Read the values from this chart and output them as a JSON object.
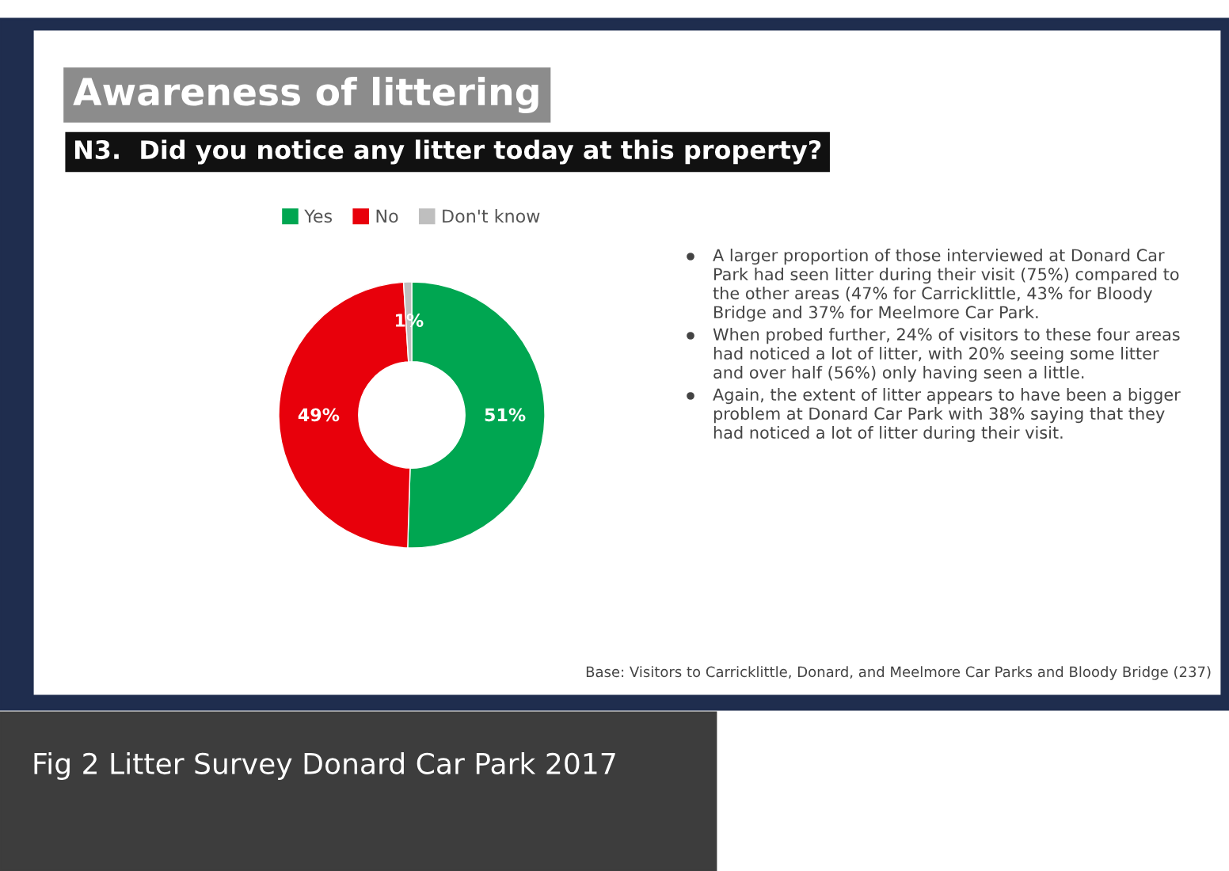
{
  "chart_data": {
    "type": "donut",
    "title": "Awareness of littering",
    "subtitle": "N3.  Did you notice any litter today at this property?",
    "categories": [
      "Yes",
      "No",
      "Don't know"
    ],
    "values": [
      51,
      49,
      1
    ],
    "colors": [
      "#00a651",
      "#e8000b",
      "#bfbfbf"
    ],
    "value_labels": [
      "51%",
      "49%",
      "1%"
    ],
    "legend": "top",
    "annotations": [
      "A larger proportion of those interviewed at Donard Car Park had seen litter during their visit (75%) compared to the other areas (47% for Carricklittle, 43% for Bloody Bridge and 37% for Meelmore Car Park.",
      "When probed further, 24% of visitors to these four areas had noticed a lot of litter, with 20% seeing some litter and over half (56%) only having seen a little.",
      "Again, the extent of litter appears to have been a bigger problem at Donard Car Park with 38% saying that they had noticed a lot of litter during their visit.",
      "Base: Visitors to Carricklittle, Donard, and Meelmore Car Parks and Bloody Bridge (237)",
      "Fig 2 Litter Survey Donard Car Park 2017"
    ]
  }
}
